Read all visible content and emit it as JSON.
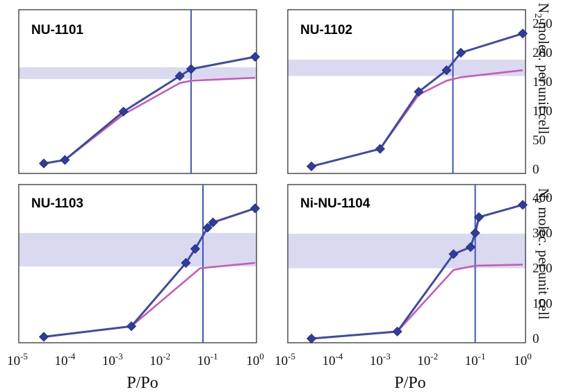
{
  "colors": {
    "measured": "#3f4aa5",
    "simulated": "#c85ab8",
    "marker": "#2e3d9e",
    "band": "#d9d9f0",
    "vline": "#3a55c0",
    "frame": "#333333"
  },
  "x_axis": {
    "label": "P/Po",
    "scale": "log10",
    "range": [
      1e-05,
      1
    ],
    "tick_labels": [
      {
        "base": "10",
        "exp": "-5"
      },
      {
        "base": "10",
        "exp": "-4"
      },
      {
        "base": "10",
        "exp": "-3"
      },
      {
        "base": "10",
        "exp": "-2"
      },
      {
        "base": "10",
        "exp": "-1"
      },
      {
        "base": "10",
        "exp": "0"
      }
    ]
  },
  "y_label": {
    "line1_pre": "N",
    "line1_sub": "2",
    "line1_post": " molec. per unit  cell"
  },
  "chart_data": [
    {
      "type": "line",
      "title": "NU-1101",
      "xscale": "log",
      "ylim": [
        0,
        250
      ],
      "yticks": [],
      "band": [
        155,
        175
      ],
      "vline": 0.045,
      "series": [
        {
          "style": "markers",
          "x": [
            3.6e-05,
            0.0001,
            0.0017,
            0.026,
            0.045,
            1.0
          ],
          "y": [
            10,
            16,
            99,
            160,
            172,
            193
          ]
        },
        {
          "style": "line",
          "x": [
            3.6e-05,
            0.0001,
            0.0017,
            0.026,
            0.045,
            1.0
          ],
          "y": [
            10,
            16,
            94,
            148,
            152,
            157
          ]
        }
      ]
    },
    {
      "type": "line",
      "title": "NU-1102",
      "xscale": "log",
      "ylim": [
        0,
        250
      ],
      "yticks": [
        "0",
        "50",
        "100",
        "150",
        "200",
        "250"
      ],
      "band": [
        160,
        188
      ],
      "vline": 0.034,
      "series": [
        {
          "style": "markers",
          "x": [
            3.6e-05,
            0.001,
            0.0065,
            0.025,
            0.05,
            1.0
          ],
          "y": [
            5,
            35,
            133,
            170,
            200,
            233
          ]
        },
        {
          "style": "line",
          "x": [
            3.6e-05,
            0.001,
            0.0065,
            0.025,
            0.05,
            1.0
          ],
          "y": [
            5,
            35,
            128,
            152,
            158,
            170
          ]
        }
      ]
    },
    {
      "type": "line",
      "title": "NU-1103",
      "xscale": "log",
      "ylim": [
        0,
        410
      ],
      "yticks": [],
      "band": [
        205,
        300
      ],
      "vline": 0.08,
      "series": [
        {
          "style": "markers",
          "x": [
            3.6e-05,
            0.0025,
            0.035,
            0.055,
            0.1,
            0.13,
            1.0
          ],
          "y": [
            5,
            35,
            215,
            255,
            315,
            330,
            370
          ]
        },
        {
          "style": "line",
          "x": [
            3.6e-05,
            0.0025,
            0.07,
            1.0
          ],
          "y": [
            5,
            35,
            200,
            215
          ]
        }
      ]
    },
    {
      "type": "line",
      "title": "Ni-NU-1104",
      "xscale": "log",
      "ylim": [
        0,
        410
      ],
      "yticks": [
        "0",
        "100",
        "200",
        "300",
        "400"
      ],
      "band": [
        200,
        298
      ],
      "vline": 0.1,
      "series": [
        {
          "style": "markers",
          "x": [
            3.6e-05,
            0.0023,
            0.035,
            0.08,
            0.1,
            0.12,
            1.0
          ],
          "y": [
            0,
            20,
            240,
            260,
            300,
            345,
            380
          ]
        },
        {
          "style": "line",
          "x": [
            3.6e-05,
            0.0023,
            0.035,
            0.1,
            1.0
          ],
          "y": [
            0,
            20,
            195,
            207,
            210
          ]
        }
      ]
    }
  ]
}
